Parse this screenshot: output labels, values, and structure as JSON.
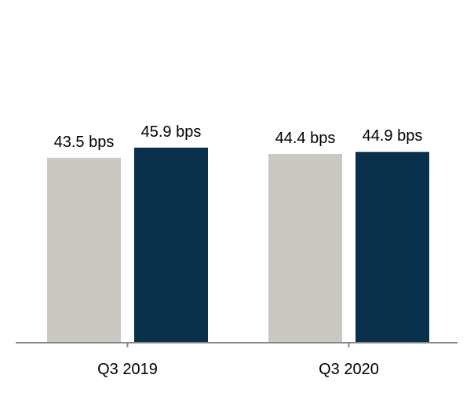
{
  "chart_data": {
    "type": "bar",
    "title": "",
    "xlabel": "",
    "ylabel": "",
    "categories": [
      "Q3 2019",
      "Q3 2020"
    ],
    "series": [
      {
        "color": "#cbc8c2",
        "values": [
          43.5,
          44.4
        ],
        "labels": [
          "43.5 bps",
          "44.4 bps"
        ]
      },
      {
        "color": "#08304a",
        "values": [
          45.9,
          44.9
        ],
        "labels": [
          "45.9 bps",
          "44.9 bps"
        ]
      }
    ],
    "ylim": [
      0,
      55
    ],
    "grid": false,
    "legend": "none",
    "axis_color": "#888888"
  }
}
